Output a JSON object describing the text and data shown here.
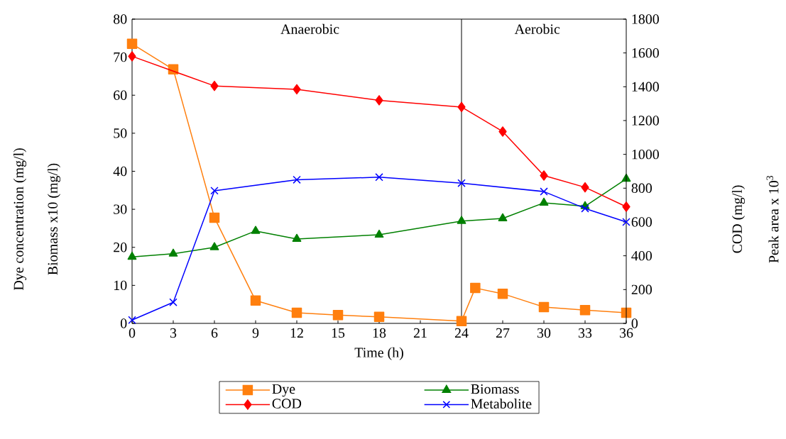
{
  "chart_data": {
    "type": "line",
    "xlabel": "Time (h)",
    "ylabel": [
      "Dye concentration (mg/l)",
      "Biomass x10 (mg/l)"
    ],
    "y2label": [
      "COD (mg/l)",
      "Peak area x 10$^{3}$"
    ],
    "xlim": [
      0,
      36
    ],
    "xticks": [
      0,
      3,
      6,
      9,
      12,
      15,
      18,
      21,
      24,
      27,
      30,
      33,
      36
    ],
    "ylim": [
      0,
      80
    ],
    "yticks": [
      0,
      10,
      20,
      30,
      40,
      50,
      60,
      70,
      80
    ],
    "y2lim": [
      0,
      1800
    ],
    "y2ticks": [
      0,
      200,
      400,
      600,
      800,
      1000,
      1200,
      1400,
      1600,
      1800
    ],
    "legend": "bottom",
    "line_style": "solid",
    "ref_lines": [
      {
        "axis": "x",
        "value": 24,
        "color": "#000000"
      }
    ],
    "annotations": [
      "Anaerobic",
      "Aerobic"
    ],
    "series": [
      {
        "name": "Dye",
        "color": "#ff7f0e",
        "marker": "square",
        "x": [
          0,
          3,
          6,
          9,
          12,
          15,
          18,
          24,
          25,
          27,
          30,
          33,
          36
        ],
        "values": [
          73.5,
          66.8,
          27.8,
          6,
          2.8,
          2.2,
          1.7,
          0.6,
          9.3,
          7.8,
          4.3,
          3.5,
          2.8
        ]
      },
      {
        "name": "COD",
        "color": "#ff0000",
        "marker": "diamond",
        "axis": "y2",
        "x": [
          0,
          6,
          12,
          18,
          24,
          27,
          30,
          33,
          36
        ],
        "values": [
          1580,
          1405,
          1385,
          1320,
          1280,
          1135,
          875,
          805,
          690
        ]
      },
      {
        "name": "Biomass",
        "color": "#008000",
        "marker": "triangle",
        "x": [
          0,
          3,
          6,
          9,
          12,
          18,
          24,
          27,
          30,
          33,
          36
        ],
        "values": [
          17.5,
          18.3,
          20,
          24.3,
          22.2,
          23.3,
          26.9,
          27.6,
          31.7,
          30.8,
          38
        ]
      },
      {
        "name": "Metabolite",
        "color": "#0000ff",
        "marker": "cross",
        "axis": "y2",
        "x": [
          0,
          3,
          6,
          12,
          18,
          24,
          30,
          33,
          36
        ],
        "values": [
          20,
          125,
          785,
          850,
          865,
          830,
          780,
          680,
          600
        ]
      }
    ]
  }
}
